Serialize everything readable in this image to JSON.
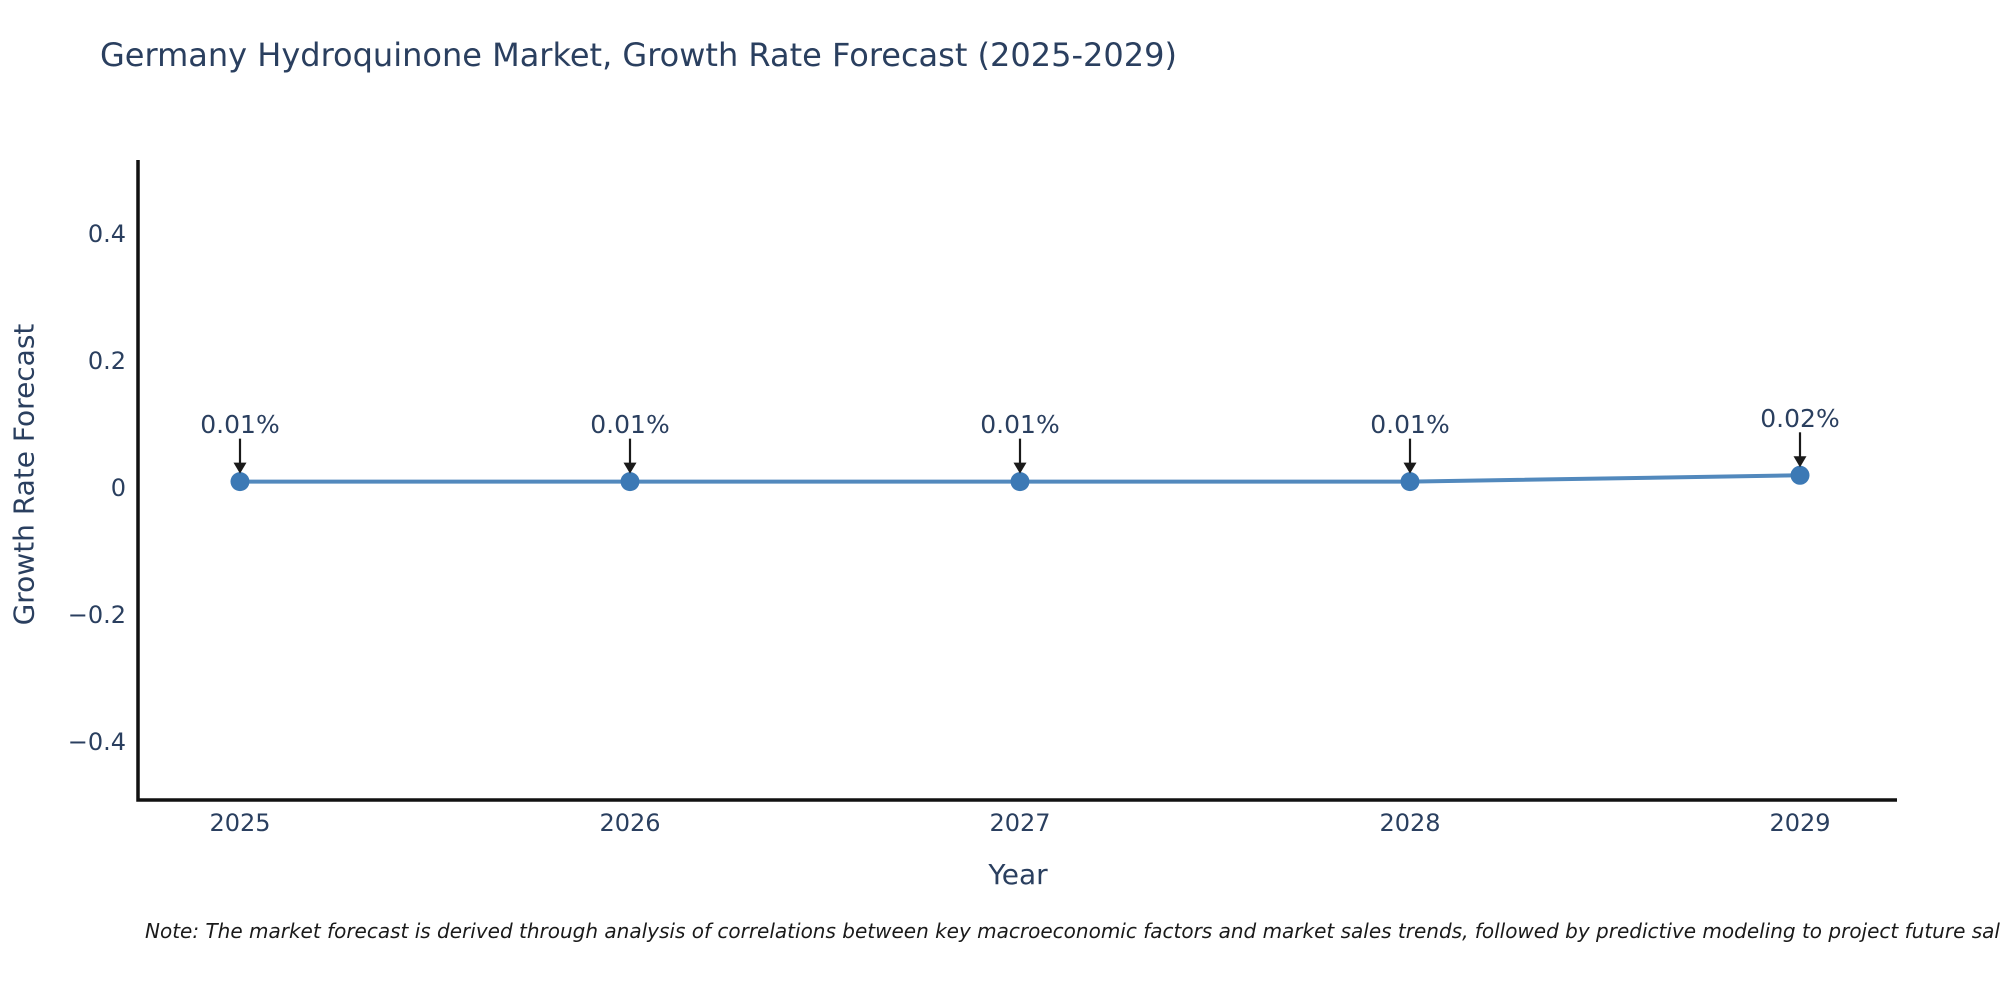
{
  "page": {
    "note": "Note: The market forecast is derived through analysis of correlations between key macroeconomic factors and market sales trends, followed by predictive modeling to project future sales."
  },
  "chart_data": {
    "type": "line",
    "title": "Germany Hydroquinone Market, Growth Rate Forecast (2025-2029)",
    "xlabel": "Year",
    "ylabel": "Growth Rate Forecast",
    "categories": [
      "2025",
      "2026",
      "2027",
      "2028",
      "2029"
    ],
    "series": [
      {
        "name": "Growth Rate Forecast",
        "values": [
          0.01,
          0.01,
          0.01,
          0.01,
          0.02
        ],
        "point_labels": [
          "0.01%",
          "0.01%",
          "0.01%",
          "0.01%",
          "0.02%"
        ]
      }
    ],
    "yticks": [
      0.4,
      0.2,
      0,
      -0.2,
      -0.4
    ],
    "ytick_labels": [
      "0.4",
      "0.2",
      "0",
      "−0.2",
      "−0.4"
    ],
    "ylim": [
      -0.5,
      0.52
    ],
    "grid": false,
    "legend_position": "none",
    "annotations_have_arrows": true,
    "colors": {
      "line": "#5289bd",
      "marker": "#3c79b5",
      "axis": "#111111",
      "text": "#2a3f5f",
      "arrow": "#1a1a1a"
    }
  }
}
